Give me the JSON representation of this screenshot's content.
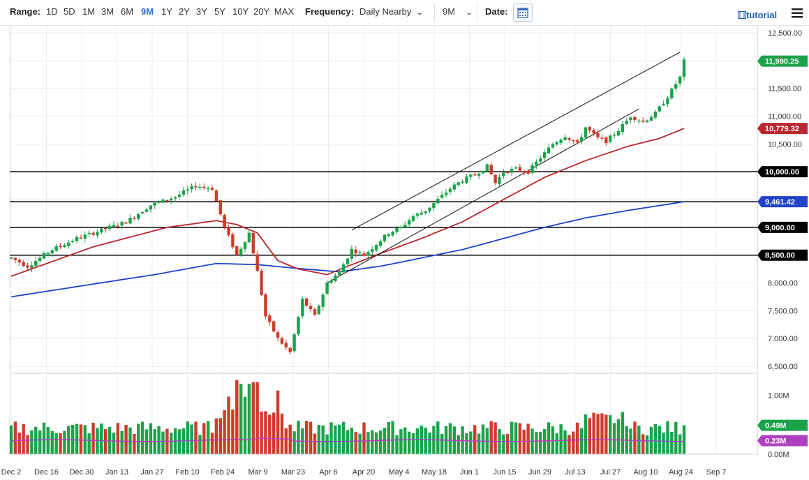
{
  "toolbar": {
    "range_label": "Range:",
    "ranges": [
      "1D",
      "5D",
      "1M",
      "3M",
      "6M",
      "9M",
      "1Y",
      "2Y",
      "3Y",
      "5Y",
      "10Y",
      "20Y",
      "MAX"
    ],
    "active_range": "9M",
    "frequency_label": "Frequency:",
    "frequency_value": "Daily Nearby",
    "period_value": "9M",
    "date_label": "Date:",
    "tutorial_label": "tutorial",
    "accent_color": "#2f6fd1"
  },
  "chart_data": {
    "type": "candlestick",
    "ylim": [
      6300,
      12550
    ],
    "y_ticks": [
      6500,
      7000,
      7500,
      8000,
      8500,
      9000,
      9500,
      10000,
      10500,
      11000,
      11500,
      12000,
      12500
    ],
    "y_tick_labels": [
      "6,500.00",
      "7,000.00",
      "7,500.00",
      "8,000.00",
      "8,500.00",
      "9,000.00",
      "9,500.00",
      "10,000.00",
      "10,500.00",
      "11,000.00",
      "11,500.00",
      "12,000.00",
      "12,500.00"
    ],
    "x_tick_labels": [
      "Dec 2",
      "Dec 16",
      "Dec 30",
      "Jan 13",
      "Jan 27",
      "Feb 10",
      "Feb 24",
      "Mar 9",
      "Mar 23",
      "Apr 6",
      "Apr 20",
      "May 4",
      "May 18",
      "Jun 1",
      "Jun 15",
      "Jun 29",
      "Jul 13",
      "Jul 27",
      "Aug 10",
      "Aug 24",
      "Sep 7"
    ],
    "last_close": 11990.25,
    "last_close_label": "11,990.25",
    "ma_short_label": "10,779.32",
    "ma_long_label": "9,461.42",
    "horizontal_levels": [
      {
        "value": 10000,
        "label": "10,000.00"
      },
      {
        "value": 9461.42,
        "label": "9,461.42"
      },
      {
        "value": 9000,
        "label": "9,000.00"
      },
      {
        "value": 8500,
        "label": "8,500.00"
      }
    ],
    "channel_lines": [
      {
        "from": [
          83,
          8950
        ],
        "to": [
          163,
          12150
        ]
      },
      {
        "from": [
          77,
          8000
        ],
        "to": [
          153,
          11130
        ]
      }
    ],
    "price_anchors": [
      [
        0,
        8450
      ],
      [
        4,
        8300
      ],
      [
        10,
        8600
      ],
      [
        16,
        8800
      ],
      [
        22,
        8950
      ],
      [
        28,
        9100
      ],
      [
        34,
        9400
      ],
      [
        40,
        9550
      ],
      [
        45,
        9750
      ],
      [
        49,
        9700
      ],
      [
        52,
        9000
      ],
      [
        55,
        8500
      ],
      [
        58,
        8900
      ],
      [
        60,
        8200
      ],
      [
        62,
        7400
      ],
      [
        65,
        7000
      ],
      [
        68,
        6750
      ],
      [
        71,
        7700
      ],
      [
        74,
        7400
      ],
      [
        77,
        8000
      ],
      [
        80,
        8200
      ],
      [
        83,
        8600
      ],
      [
        86,
        8500
      ],
      [
        89,
        8700
      ],
      [
        92,
        8900
      ],
      [
        95,
        9000
      ],
      [
        98,
        9200
      ],
      [
        101,
        9300
      ],
      [
        104,
        9500
      ],
      [
        107,
        9700
      ],
      [
        110,
        9850
      ],
      [
        113,
        9950
      ],
      [
        116,
        10100
      ],
      [
        118,
        9800
      ],
      [
        120,
        10000
      ],
      [
        123,
        10050
      ],
      [
        126,
        10000
      ],
      [
        129,
        10250
      ],
      [
        132,
        10500
      ],
      [
        135,
        10650
      ],
      [
        138,
        10500
      ],
      [
        140,
        10800
      ],
      [
        143,
        10600
      ],
      [
        145,
        10550
      ],
      [
        148,
        10750
      ],
      [
        151,
        11000
      ],
      [
        154,
        10900
      ],
      [
        157,
        11050
      ],
      [
        160,
        11350
      ],
      [
        163,
        11700
      ],
      [
        164,
        11990
      ]
    ],
    "ma_short_anchors": [
      [
        0,
        8120
      ],
      [
        20,
        8650
      ],
      [
        38,
        9000
      ],
      [
        50,
        9120
      ],
      [
        55,
        9050
      ],
      [
        60,
        8900
      ],
      [
        65,
        8400
      ],
      [
        70,
        8250
      ],
      [
        77,
        8150
      ],
      [
        82,
        8300
      ],
      [
        90,
        8530
      ],
      [
        100,
        8800
      ],
      [
        110,
        9100
      ],
      [
        120,
        9500
      ],
      [
        130,
        9900
      ],
      [
        140,
        10200
      ],
      [
        150,
        10450
      ],
      [
        158,
        10600
      ],
      [
        164,
        10779
      ]
    ],
    "ma_long_anchors": [
      [
        0,
        7750
      ],
      [
        20,
        7980
      ],
      [
        35,
        8150
      ],
      [
        50,
        8350
      ],
      [
        60,
        8330
      ],
      [
        70,
        8260
      ],
      [
        80,
        8200
      ],
      [
        90,
        8300
      ],
      [
        100,
        8450
      ],
      [
        110,
        8600
      ],
      [
        120,
        8800
      ],
      [
        130,
        9000
      ],
      [
        140,
        9170
      ],
      [
        150,
        9300
      ],
      [
        164,
        9461
      ]
    ],
    "volume": {
      "ylim": [
        0,
        1.35
      ],
      "y_tick_labels": [
        "1.00M",
        "0.00M"
      ],
      "y_ticks": [
        1.0,
        0.0
      ],
      "last_volume_label": "0.49M",
      "avg_volume_label": "0.23M",
      "last_volume": 0.49,
      "avg_volume": 0.23
    },
    "colors": {
      "up": "#1aa34a",
      "down": "#cf3b2b",
      "ma_short": "#b8272c",
      "ma_long": "#1f43c9",
      "level": "#000000",
      "vol_avg": "#b040c0"
    }
  }
}
